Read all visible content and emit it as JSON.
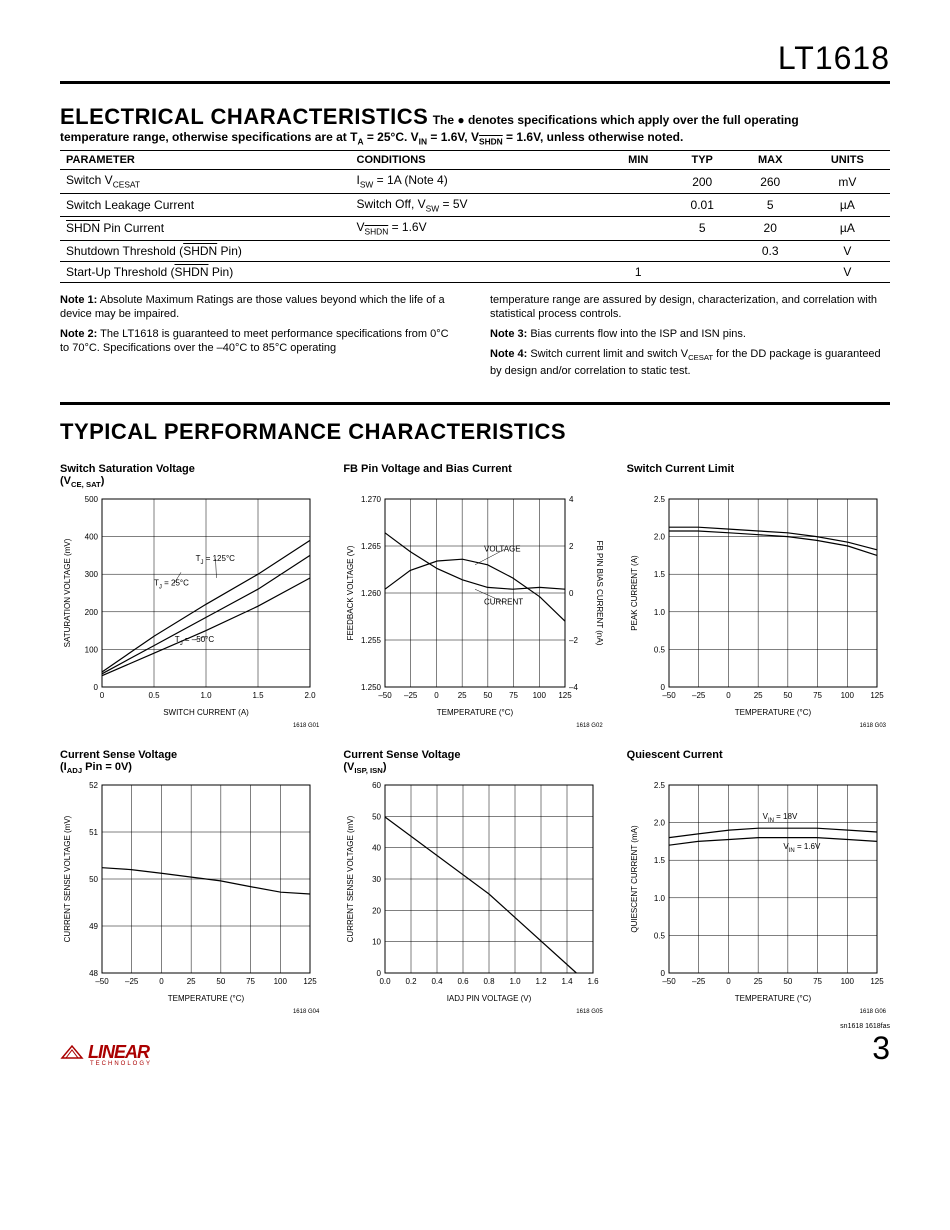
{
  "header": {
    "part_number": "LT1618"
  },
  "section_ec": {
    "title": "ELECTRICAL CHARACTERISTICS",
    "subtitle_a": "The ",
    "subtitle_b": " denotes specifications which apply over the full operating",
    "subtitle2": "temperature range, otherwise specifications are at T",
    "subtitle2_sub": "A",
    "subtitle2_b": " = 25°C. V",
    "subtitle2_sub2": "IN",
    "subtitle2_c": " = 1.6V, V",
    "subtitle2_sub3": "SHDN",
    "subtitle2_d": " = 1.6V, unless otherwise noted.",
    "columns": [
      "PARAMETER",
      "CONDITIONS",
      "",
      "MIN",
      "TYP",
      "MAX",
      "UNITS"
    ],
    "rows": [
      {
        "param_a": "Switch V",
        "param_sub": "CESAT",
        "cond_a": "I",
        "cond_sub": "SW",
        "cond_b": " = 1A (Note 4)",
        "min": "",
        "typ": "200",
        "max": "260",
        "units": "mV"
      },
      {
        "param_a": "Switch Leakage Current",
        "param_sub": "",
        "cond_a": "Switch Off, V",
        "cond_sub": "SW",
        "cond_b": " = 5V",
        "min": "",
        "typ": "0.01",
        "max": "5",
        "units": "µA"
      },
      {
        "param_a": "SHDN",
        "param_ov": true,
        "param_b": " Pin Current",
        "cond_a": "V",
        "cond_sub": "SHDN",
        "cond_ov": true,
        "cond_b": " = 1.6V",
        "min": "",
        "typ": "5",
        "max": "20",
        "units": "µA"
      },
      {
        "param_a": "Shutdown Threshold (",
        "param_ov2": "SHDN",
        "param_b": " Pin)",
        "cond_a": "",
        "cond_sub": "",
        "cond_b": "",
        "min": "",
        "typ": "",
        "max": "0.3",
        "units": "V"
      },
      {
        "param_a": "Start-Up Threshold (",
        "param_ov2": "SHDN",
        "param_b": " Pin)",
        "cond_a": "",
        "cond_sub": "",
        "cond_b": "",
        "min": "1",
        "typ": "",
        "max": "",
        "units": "V"
      }
    ]
  },
  "notes": {
    "left": [
      {
        "b": "Note 1:",
        "t": " Absolute Maximum Ratings are those values beyond which the life of a device may be impaired."
      },
      {
        "b": "Note 2:",
        "t": " The LT1618 is guaranteed to meet performance specifications from 0°C to 70°C. Specifications over the –40°C to 85°C operating"
      }
    ],
    "right": [
      {
        "b": "",
        "t": "temperature range are assured by design, characterization, and correlation with statistical process controls."
      },
      {
        "b": "Note 3:",
        "t": " Bias currents flow into the ISP and ISN pins."
      },
      {
        "b": "Note 4:",
        "t": " Switch current limit and switch V",
        "sub": "CESAT",
        "t2": " for the DD package is guaranteed by design and/or correlation to static test."
      }
    ]
  },
  "section_tpc": {
    "title": "TYPICAL PERFORMANCE CHARACTERISTICS"
  },
  "charts": [
    {
      "title_a": "Switch Saturation Voltage",
      "title_b": "(V",
      "title_sub": "CE, SAT",
      "title_c": ")",
      "code": "1618 G01",
      "xlabel": "SWITCH CURRENT (A)",
      "ylabel": "SATURATION VOLTAGE (mV)",
      "xticks": [
        "0",
        "0.5",
        "1.0",
        "1.5",
        "2.0"
      ],
      "yticks": [
        "0",
        "100",
        "200",
        "300",
        "400",
        "500"
      ],
      "series": [
        {
          "label": "TJ = 125°C",
          "lx": 0.45,
          "ly": 0.33,
          "ax": 0.55,
          "ay": 0.42,
          "pts": [
            [
              0,
              0.08
            ],
            [
              0.25,
              0.27
            ],
            [
              0.5,
              0.44
            ],
            [
              0.75,
              0.6
            ],
            [
              1.0,
              0.78
            ]
          ]
        },
        {
          "label": "TJ = 25°C",
          "lx": 0.25,
          "ly": 0.46,
          "ax": 0.38,
          "ay": 0.39,
          "pts": [
            [
              0,
              0.07
            ],
            [
              0.25,
              0.22
            ],
            [
              0.5,
              0.37
            ],
            [
              0.75,
              0.52
            ],
            [
              1.0,
              0.7
            ]
          ]
        },
        {
          "label": "TJ = –50°C",
          "lx": 0.35,
          "ly": 0.76,
          "ax": 0.5,
          "ay": 0.73,
          "pts": [
            [
              0,
              0.06
            ],
            [
              0.25,
              0.18
            ],
            [
              0.5,
              0.3
            ],
            [
              0.75,
              0.43
            ],
            [
              1.0,
              0.58
            ]
          ]
        }
      ]
    },
    {
      "title_a": "FB Pin Voltage and Bias Current",
      "title_b": "",
      "title_sub": "",
      "title_c": "",
      "code": "1618 G02",
      "xlabel": "TEMPERATURE (°C)",
      "ylabel": "FEEDBACK VOLTAGE (V)",
      "ylabel2": "FB PIN BIAS CURRENT (nA)",
      "xticks": [
        "–50",
        "–25",
        "0",
        "25",
        "50",
        "75",
        "100",
        "125"
      ],
      "yticks": [
        "1.250",
        "1.255",
        "1.260",
        "1.265",
        "1.270"
      ],
      "yticks2": [
        "–4",
        "–2",
        "0",
        "2",
        "4"
      ],
      "series": [
        {
          "label": "VOLTAGE",
          "lx": 0.55,
          "ly": 0.28,
          "pts": [
            [
              0,
              0.52
            ],
            [
              0.14,
              0.62
            ],
            [
              0.29,
              0.67
            ],
            [
              0.43,
              0.68
            ],
            [
              0.57,
              0.65
            ],
            [
              0.71,
              0.58
            ],
            [
              0.86,
              0.48
            ],
            [
              1.0,
              0.35
            ]
          ],
          "arrow": true,
          "ax": 0.5,
          "ay": 0.35
        },
        {
          "label": "CURRENT",
          "lx": 0.55,
          "ly": 0.56,
          "pts": [
            [
              0,
              0.82
            ],
            [
              0.14,
              0.72
            ],
            [
              0.29,
              0.63
            ],
            [
              0.43,
              0.57
            ],
            [
              0.57,
              0.53
            ],
            [
              0.71,
              0.52
            ],
            [
              0.86,
              0.53
            ],
            [
              1.0,
              0.52
            ]
          ],
          "arrow": true,
          "ax": 0.5,
          "ay": 0.48
        }
      ]
    },
    {
      "title_a": "Switch Current Limit",
      "title_b": "",
      "title_sub": "",
      "title_c": "",
      "code": "1618 G03",
      "xlabel": "TEMPERATURE (°C)",
      "ylabel": "PEAK CURRENT (A)",
      "xticks": [
        "–50",
        "–25",
        "0",
        "25",
        "50",
        "75",
        "100",
        "125"
      ],
      "yticks": [
        "0",
        "0.5",
        "1.0",
        "1.5",
        "2.0",
        "2.5"
      ],
      "series": [
        {
          "pts": [
            [
              0,
              0.83
            ],
            [
              0.14,
              0.83
            ],
            [
              0.29,
              0.82
            ],
            [
              0.43,
              0.81
            ],
            [
              0.57,
              0.8
            ],
            [
              0.71,
              0.78
            ],
            [
              0.86,
              0.75
            ],
            [
              1.0,
              0.7
            ]
          ]
        },
        {
          "pts": [
            [
              0,
              0.85
            ],
            [
              0.14,
              0.85
            ],
            [
              0.29,
              0.84
            ],
            [
              0.43,
              0.83
            ],
            [
              0.57,
              0.82
            ],
            [
              0.71,
              0.8
            ],
            [
              0.86,
              0.77
            ],
            [
              1.0,
              0.73
            ]
          ]
        }
      ]
    },
    {
      "title_a": "Current Sense Voltage",
      "title_b": "(I",
      "title_sub": "ADJ",
      "title_c": " Pin = 0V)",
      "code": "1618 G04",
      "xlabel": "TEMPERATURE (°C)",
      "ylabel": "CURRENT SENSE VOLTAGE (mV)",
      "xticks": [
        "–50",
        "–25",
        "0",
        "25",
        "50",
        "75",
        "100",
        "125"
      ],
      "yticks": [
        "48",
        "49",
        "50",
        "51",
        "52"
      ],
      "series": [
        {
          "pts": [
            [
              0,
              0.56
            ],
            [
              0.14,
              0.55
            ],
            [
              0.29,
              0.53
            ],
            [
              0.43,
              0.51
            ],
            [
              0.57,
              0.49
            ],
            [
              0.71,
              0.46
            ],
            [
              0.86,
              0.43
            ],
            [
              1.0,
              0.42
            ]
          ]
        }
      ]
    },
    {
      "title_a": "Current Sense Voltage",
      "title_b": "(V",
      "title_sub": "ISP, ISN",
      "title_c": ")",
      "code": "1618 G05",
      "xlabel": "IADJ PIN VOLTAGE (V)",
      "ylabel": "CURRENT SENSE VOLTAGE (mV)",
      "xticks": [
        "0.0",
        "0.2",
        "0.4",
        "0.6",
        "0.8",
        "1.0",
        "1.2",
        "1.4",
        "1.6"
      ],
      "yticks": [
        "0",
        "10",
        "20",
        "30",
        "40",
        "50",
        "60"
      ],
      "series": [
        {
          "pts": [
            [
              0,
              0.83
            ],
            [
              0.5,
              0.42
            ],
            [
              0.92,
              0.0
            ]
          ]
        }
      ]
    },
    {
      "title_a": "Quiescent Current",
      "title_b": "",
      "title_sub": "",
      "title_c": "",
      "code": "1618 G06",
      "xlabel": "TEMPERATURE (°C)",
      "ylabel": "QUIESCENT CURRENT (mA)",
      "xticks": [
        "–50",
        "–25",
        "0",
        "25",
        "50",
        "75",
        "100",
        "125"
      ],
      "yticks": [
        "0",
        "0.5",
        "1.0",
        "1.5",
        "2.0",
        "2.5"
      ],
      "series": [
        {
          "label": "VIN = 18V",
          "lx": 0.45,
          "ly": 0.18,
          "pts": [
            [
              0,
              0.72
            ],
            [
              0.14,
              0.74
            ],
            [
              0.29,
              0.76
            ],
            [
              0.43,
              0.77
            ],
            [
              0.57,
              0.77
            ],
            [
              0.71,
              0.77
            ],
            [
              0.86,
              0.76
            ],
            [
              1.0,
              0.75
            ]
          ]
        },
        {
          "label": "VIN = 1.6V",
          "lx": 0.55,
          "ly": 0.34,
          "pts": [
            [
              0,
              0.68
            ],
            [
              0.14,
              0.7
            ],
            [
              0.29,
              0.71
            ],
            [
              0.43,
              0.72
            ],
            [
              0.57,
              0.72
            ],
            [
              0.71,
              0.72
            ],
            [
              0.86,
              0.71
            ],
            [
              1.0,
              0.7
            ]
          ]
        }
      ]
    }
  ],
  "footer": {
    "logo": "LINEAR",
    "logo_sub": "TECHNOLOGY",
    "sn": "sn1618 1618fas",
    "page": "3"
  }
}
